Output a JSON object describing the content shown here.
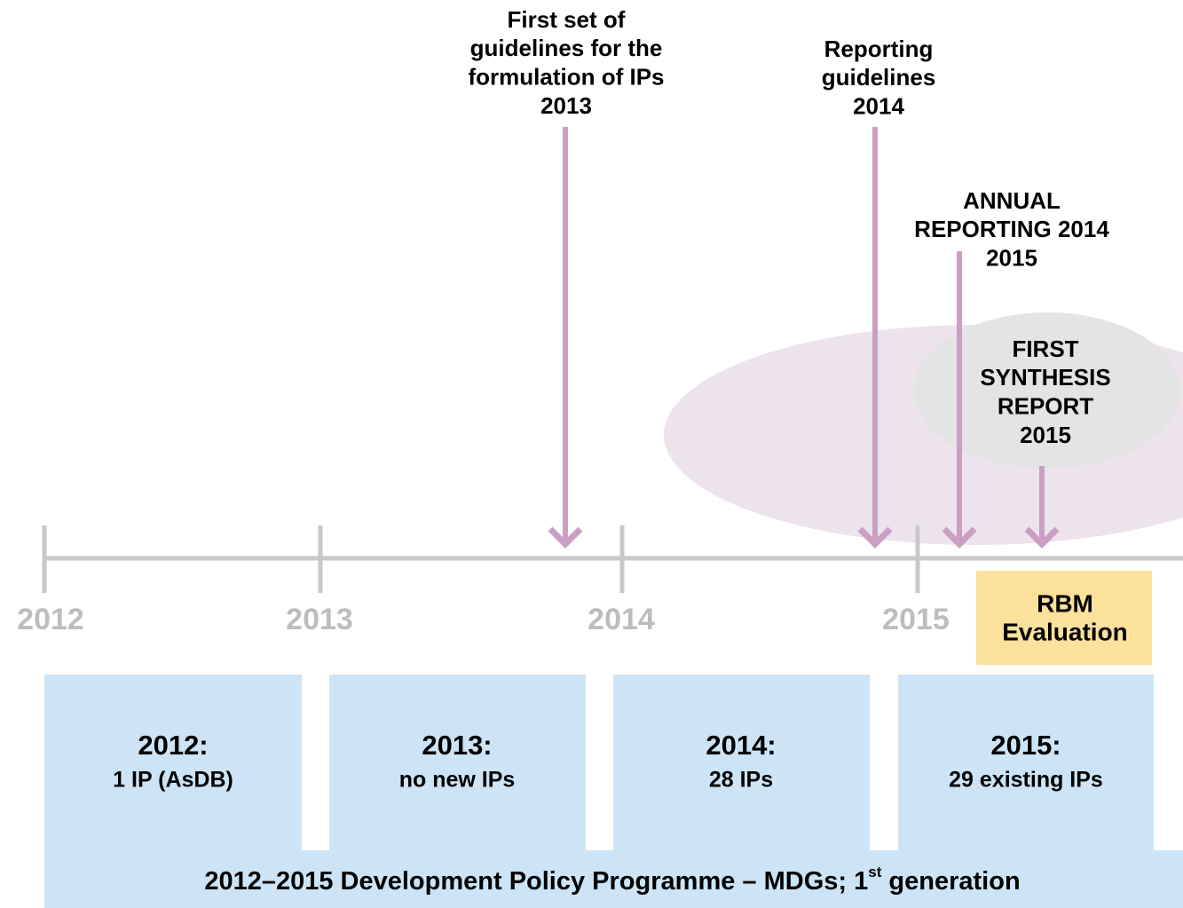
{
  "years": [
    "2012",
    "2013",
    "2014",
    "2015"
  ],
  "events": [
    {
      "lines": [
        "First set of",
        "guidelines for the",
        "formulation of IPs",
        "2013"
      ]
    },
    {
      "lines": [
        "Reporting",
        "guidelines",
        "2014"
      ]
    },
    {
      "lines": [
        "ANNUAL",
        "REPORTING 2014",
        "2015"
      ]
    },
    {
      "lines": [
        "FIRST",
        "SYNTHESIS",
        "REPORT",
        "2015"
      ]
    }
  ],
  "evaluation": {
    "lines": [
      "RBM",
      "Evaluation"
    ]
  },
  "boxes": [
    {
      "title": "2012:",
      "text": "1 IP (AsDB)"
    },
    {
      "title": "2013:",
      "text": "no new IPs"
    },
    {
      "title": "2014:",
      "text": "28 IPs"
    },
    {
      "title": "2015:",
      "text": "29 existing IPs"
    }
  ],
  "programme": {
    "before": "2012–2015 Development Policy Programme – MDGs; 1",
    "sup": "st",
    "after": " generation"
  }
}
